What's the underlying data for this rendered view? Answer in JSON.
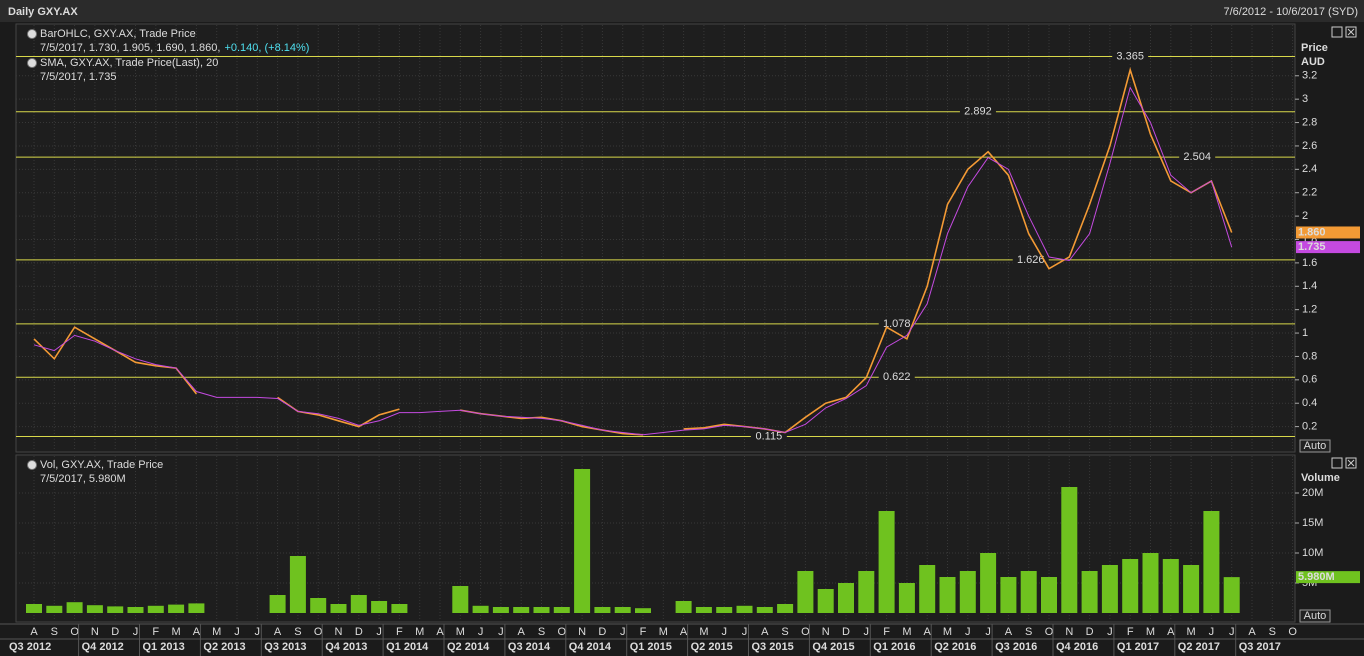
{
  "title": "Daily GXY.AX",
  "date_range": "7/6/2012 - 10/6/2017 (SYD)",
  "x_axis": {
    "months": [
      "A",
      "S",
      "O",
      "N",
      "D",
      "J",
      "F",
      "M",
      "A",
      "M",
      "J",
      "J",
      "A",
      "S",
      "O",
      "N",
      "D",
      "J",
      "F",
      "M",
      "A",
      "M",
      "J",
      "J",
      "A",
      "S",
      "O",
      "N",
      "D",
      "J",
      "F",
      "M",
      "A",
      "M",
      "J",
      "J",
      "A",
      "S",
      "O",
      "N",
      "D",
      "J",
      "F",
      "M",
      "A",
      "M",
      "J",
      "J",
      "A",
      "S",
      "O",
      "N",
      "D",
      "J",
      "F",
      "M",
      "A",
      "M",
      "J",
      "J",
      "A",
      "S",
      "O"
    ],
    "quarters": [
      "Q3 2012",
      "Q4 2012",
      "Q1 2013",
      "Q2 2013",
      "Q3 2013",
      "Q4 2013",
      "Q1 2014",
      "Q2 2014",
      "Q3 2014",
      "Q4 2014",
      "Q1 2015",
      "Q2 2015",
      "Q3 2015",
      "Q4 2015",
      "Q1 2016",
      "Q2 2016",
      "Q3 2016",
      "Q4 2016",
      "Q1 2017",
      "Q2 2017",
      "Q3 2017"
    ]
  },
  "chart_data": [
    {
      "type": "line",
      "y_axis_label": "Price",
      "y_axis_unit": "AUD",
      "auto_button": "Auto",
      "ylim": [
        0,
        3.6
      ],
      "yticks": [
        0.2,
        0.4,
        0.6,
        0.8,
        1,
        1.2,
        1.4,
        1.6,
        1.8,
        2,
        2.2,
        2.4,
        2.6,
        2.8,
        3,
        3.2
      ],
      "grid": true,
      "levels": [
        3.365,
        2.892,
        2.504,
        1.626,
        1.078,
        0.622,
        0.115
      ],
      "level_color": "#d8d84a",
      "series": [
        {
          "name": "BarOHLC, GXY.AX, Trade Price",
          "color": "#f39a35",
          "legend_detail": "7/5/2017, 1.730, 1.905, 1.690, 1.860,",
          "legend_change": "+0.140, (+8.14%)",
          "last": {
            "value": 1.86,
            "label": "1.860"
          },
          "values": [
            0.95,
            0.78,
            1.05,
            0.95,
            0.85,
            0.75,
            0.72,
            0.7,
            0.48,
            null,
            null,
            null,
            0.45,
            0.33,
            0.3,
            0.25,
            0.2,
            0.3,
            0.35,
            null,
            null,
            0.34,
            0.31,
            0.29,
            0.27,
            0.28,
            0.25,
            0.2,
            0.17,
            0.14,
            0.13,
            null,
            0.18,
            0.19,
            0.22,
            0.2,
            0.18,
            0.15,
            0.28,
            0.4,
            0.45,
            0.62,
            1.05,
            0.95,
            1.4,
            2.1,
            2.4,
            2.55,
            2.35,
            1.85,
            1.55,
            1.65,
            2.1,
            2.6,
            3.25,
            2.7,
            2.3,
            2.2,
            2.3,
            1.86,
            null,
            null,
            null
          ]
        },
        {
          "name": "SMA, GXY.AX, Trade Price(Last), 20",
          "color": "#c44ae0",
          "legend_detail": "7/5/2017, 1.735",
          "last": {
            "value": 1.735,
            "label": "1.735"
          },
          "values": [
            0.9,
            0.85,
            0.98,
            0.93,
            0.85,
            0.78,
            0.73,
            0.7,
            0.5,
            0.45,
            0.45,
            0.45,
            0.44,
            0.33,
            0.31,
            0.27,
            0.21,
            0.25,
            0.32,
            0.32,
            0.33,
            0.34,
            0.31,
            0.29,
            0.28,
            0.27,
            0.25,
            0.21,
            0.17,
            0.15,
            0.13,
            0.15,
            0.17,
            0.18,
            0.21,
            0.2,
            0.18,
            0.15,
            0.22,
            0.36,
            0.44,
            0.55,
            0.88,
            0.98,
            1.25,
            1.85,
            2.25,
            2.5,
            2.4,
            2.0,
            1.65,
            1.62,
            1.85,
            2.45,
            3.1,
            2.8,
            2.35,
            2.2,
            2.3,
            1.735,
            null,
            null,
            null
          ]
        }
      ]
    },
    {
      "type": "bar",
      "y_axis_label": "Volume",
      "auto_button": "Auto",
      "ylim": [
        0,
        25000000
      ],
      "yticks": [
        {
          "value": 5000000,
          "label": "5M"
        },
        {
          "value": 10000000,
          "label": "10M"
        },
        {
          "value": 15000000,
          "label": "15M"
        },
        {
          "value": 20000000,
          "label": "20M"
        }
      ],
      "grid": true,
      "series": [
        {
          "name": "Vol, GXY.AX, Trade Price",
          "color": "#6fc21f",
          "legend_detail": "7/5/2017, 5.980M",
          "last": {
            "value": 5980000,
            "label": "5.980M"
          },
          "values": [
            1500000,
            1200000,
            1800000,
            1300000,
            1100000,
            1000000,
            1200000,
            1400000,
            1600000,
            null,
            null,
            null,
            3000000,
            9500000,
            2500000,
            1500000,
            3000000,
            2000000,
            1500000,
            null,
            null,
            4500000,
            1200000,
            1000000,
            1000000,
            1000000,
            1000000,
            24000000,
            1000000,
            1000000,
            800000,
            null,
            2000000,
            1000000,
            1000000,
            1200000,
            1000000,
            1500000,
            7000000,
            4000000,
            5000000,
            7000000,
            17000000,
            5000000,
            8000000,
            6000000,
            7000000,
            10000000,
            6000000,
            7000000,
            6000000,
            21000000,
            7000000,
            8000000,
            9000000,
            10000000,
            9000000,
            8000000,
            17000000,
            5980000,
            null,
            null,
            null
          ]
        }
      ]
    }
  ]
}
